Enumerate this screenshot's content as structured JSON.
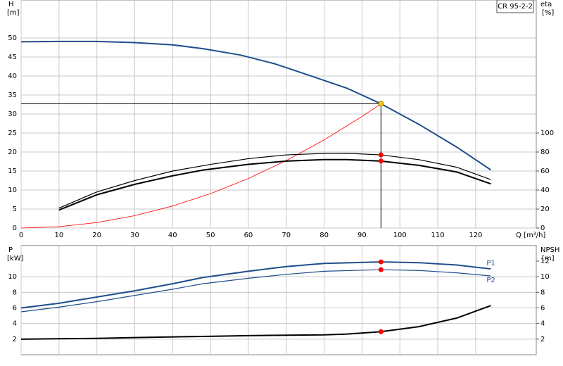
{
  "chart_data": [
    {
      "type": "line",
      "title": "CR 95-2-2",
      "y_label": "H",
      "y_unit": "[m]",
      "y2_label": "eta",
      "y2_unit": "[%]",
      "x_label": "Q [m³/h]",
      "xlim": [
        0,
        136
      ],
      "xticks": [
        0,
        10,
        20,
        30,
        40,
        50,
        60,
        70,
        80,
        90,
        100,
        110,
        120
      ],
      "ylim": [
        0,
        60
      ],
      "yticks": [
        0,
        5,
        10,
        15,
        20,
        25,
        30,
        35,
        40,
        45,
        50
      ],
      "y2lim": [
        0,
        240
      ],
      "y2ticks": [
        0,
        20,
        40,
        60,
        80,
        100
      ],
      "grid": true,
      "series": [
        {
          "color": "#1f4e8c",
          "line_width": 2,
          "x": [
            0,
            10,
            20,
            30,
            40,
            48,
            58,
            67,
            76,
            86,
            95,
            105,
            115,
            124
          ],
          "values": [
            49,
            49.1,
            49.1,
            48.8,
            48.2,
            47.2,
            45.5,
            43.2,
            40.2,
            36.8,
            32.7,
            27.3,
            21.3,
            15.3
          ]
        },
        {
          "color": "#ff0000",
          "line_width": 0.8,
          "x": [
            0,
            10,
            20,
            30,
            40,
            50,
            60,
            70,
            80,
            90,
            95
          ],
          "values": [
            0,
            0.36,
            1.45,
            3.26,
            5.8,
            9.06,
            13.04,
            17.75,
            23.19,
            29.35,
            32.7
          ]
        },
        {
          "color": "#000000",
          "line_width": 1.2,
          "axis": "y2",
          "x": [
            10,
            20,
            30,
            40,
            50,
            60,
            70,
            80,
            86,
            95,
            105,
            115,
            124
          ],
          "values": [
            21,
            38,
            50,
            60,
            67,
            73,
            77,
            78.5,
            78.7,
            77,
            72,
            64,
            51
          ]
        },
        {
          "color": "#000000",
          "line_width": 2,
          "axis": "y2",
          "x": [
            10,
            20,
            30,
            40,
            48,
            60,
            70,
            80,
            86,
            95,
            105,
            115,
            124
          ],
          "values": [
            19,
            35,
            46,
            55,
            61,
            67,
            70.5,
            72,
            72,
            70.5,
            66,
            59,
            46.5
          ]
        }
      ],
      "points": [
        {
          "x": 95,
          "y": 32.7,
          "color": "#f5c518",
          "guide": true
        },
        {
          "x": 95,
          "y": 77,
          "color": "#ff0000",
          "axis": "y2"
        },
        {
          "x": 95,
          "y": 70.5,
          "color": "#ff0000",
          "axis": "y2"
        }
      ]
    },
    {
      "type": "line",
      "y_label": "P",
      "y_unit": "[kW]",
      "y2_label": "NPSH",
      "y2_unit": "[m]",
      "xlim": [
        0,
        136
      ],
      "xticks": [
        0,
        10,
        20,
        30,
        40,
        50,
        60,
        70,
        80,
        90,
        100,
        110,
        120
      ],
      "ylim": [
        0,
        14
      ],
      "yticks": [
        2,
        4,
        6,
        8,
        10
      ],
      "y2lim": [
        0,
        14
      ],
      "y2ticks": [
        2,
        4,
        6,
        8,
        10,
        12
      ],
      "grid": true,
      "series": [
        {
          "name": "P1",
          "color": "#1f4e8c",
          "line_width": 2,
          "x": [
            0,
            10,
            20,
            30,
            40,
            48,
            60,
            70,
            80,
            95,
            105,
            115,
            124
          ],
          "values": [
            6,
            6.6,
            7.4,
            8.2,
            9.1,
            9.9,
            10.7,
            11.3,
            11.7,
            11.9,
            11.8,
            11.5,
            11
          ]
        },
        {
          "name": "P2",
          "color": "#1f4e8c",
          "line_width": 1.2,
          "x": [
            0,
            10,
            20,
            30,
            40,
            48,
            60,
            70,
            80,
            95,
            105,
            115,
            124
          ],
          "values": [
            5.5,
            6.1,
            6.8,
            7.6,
            8.4,
            9.1,
            9.8,
            10.3,
            10.7,
            10.9,
            10.8,
            10.5,
            10.1
          ]
        },
        {
          "color": "#000000",
          "line_width": 2,
          "axis": "y2",
          "x": [
            0,
            10,
            20,
            30,
            48,
            60,
            70,
            80,
            86,
            95,
            105,
            115,
            124
          ],
          "values": [
            2,
            2.05,
            2.1,
            2.2,
            2.35,
            2.45,
            2.5,
            2.55,
            2.65,
            2.95,
            3.6,
            4.7,
            6.3
          ]
        }
      ],
      "points": [
        {
          "x": 95,
          "y": 11.9,
          "color": "#ff0000"
        },
        {
          "x": 95,
          "y": 10.9,
          "color": "#ff0000"
        },
        {
          "x": 95,
          "y": 2.95,
          "color": "#ff0000",
          "axis": "y2"
        }
      ]
    }
  ]
}
